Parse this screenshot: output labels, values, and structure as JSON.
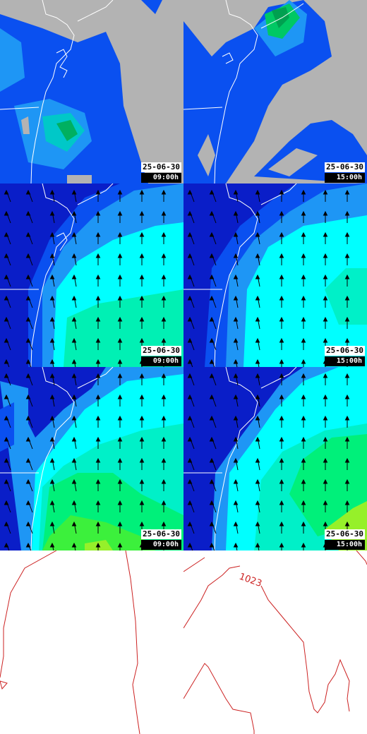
{
  "panels": [
    {
      "date": "25-06-30",
      "time": "09:00h"
    },
    {
      "date": "25-06-30",
      "time": "15:00h"
    },
    {
      "date": "25-06-30",
      "time": "09:00h"
    },
    {
      "date": "25-06-30",
      "time": "15:00h"
    },
    {
      "date": "25-06-30",
      "time": "09:00h"
    },
    {
      "date": "25-06-30",
      "time": "15:00h"
    }
  ],
  "isobar": {
    "label": "1023"
  },
  "colors": {
    "land_gray": "#b3b3b3",
    "deep_blue": "#0a1ec8",
    "blue": "#0a50f0",
    "light_blue": "#1e96f5",
    "cyan": "#00ffff",
    "aqua": "#00e6c8",
    "green": "#00f07a",
    "lime": "#96f02a",
    "isobar_red": "#cc2222"
  }
}
